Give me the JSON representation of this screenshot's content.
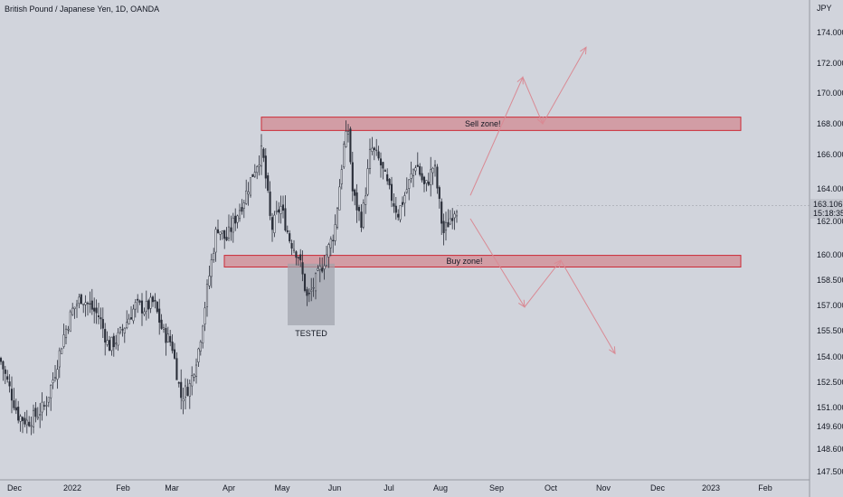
{
  "chart_data": {
    "type": "candlestick",
    "title": "British Pound / Japanese Yen, 1D, OANDA",
    "currency": "JPY",
    "current_price": "163.106",
    "countdown": "15:18:35",
    "y_ticks": [
      "174.000",
      "172.000",
      "170.000",
      "168.000",
      "166.000",
      "164.000",
      "162.000",
      "160.000",
      "158.500",
      "157.000",
      "155.500",
      "154.000",
      "152.500",
      "151.000",
      "149.600",
      "148.600",
      "147.500"
    ],
    "x_ticks": [
      "Dec",
      "2022",
      "Feb",
      "Mar",
      "Apr",
      "May",
      "Jun",
      "Jul",
      "Aug",
      "Sep",
      "Oct",
      "Nov",
      "Dec",
      "2023",
      "Feb"
    ],
    "price_series_approx": [
      [
        0,
        153.9
      ],
      [
        10,
        152.2
      ],
      [
        20,
        150.5
      ],
      [
        30,
        150.1
      ],
      [
        40,
        150.5
      ],
      [
        50,
        151.1
      ],
      [
        60,
        152.9
      ],
      [
        70,
        155.2
      ],
      [
        80,
        156.8
      ],
      [
        90,
        157.6
      ],
      [
        100,
        157.0
      ],
      [
        110,
        156.4
      ],
      [
        120,
        154.6
      ],
      [
        130,
        155.1
      ],
      [
        140,
        156.1
      ],
      [
        150,
        157.1
      ],
      [
        160,
        156.9
      ],
      [
        170,
        157.3
      ],
      [
        180,
        155.5
      ],
      [
        190,
        154.8
      ],
      [
        200,
        151.6
      ],
      [
        210,
        152.3
      ],
      [
        220,
        154.6
      ],
      [
        230,
        158.4
      ],
      [
        240,
        161.9
      ],
      [
        250,
        161.0
      ],
      [
        260,
        162.3
      ],
      [
        270,
        163.5
      ],
      [
        280,
        165.1
      ],
      [
        290,
        166.4
      ],
      [
        295,
        164.2
      ],
      [
        300,
        161.6
      ],
      [
        310,
        163.1
      ],
      [
        320,
        161.1
      ],
      [
        330,
        160.1
      ],
      [
        340,
        157.4
      ],
      [
        350,
        158.7
      ],
      [
        360,
        160.0
      ],
      [
        370,
        161.6
      ],
      [
        380,
        166.6
      ],
      [
        385,
        167.6
      ],
      [
        390,
        163.8
      ],
      [
        400,
        162.1
      ],
      [
        410,
        166.6
      ],
      [
        420,
        165.7
      ],
      [
        430,
        164.0
      ],
      [
        440,
        162.6
      ],
      [
        450,
        164.1
      ],
      [
        460,
        165.7
      ],
      [
        470,
        164.1
      ],
      [
        480,
        165.6
      ],
      [
        490,
        161.4
      ],
      [
        500,
        162.6
      ],
      [
        505,
        163.1
      ]
    ],
    "zones": [
      {
        "label": "Sell zone!",
        "y_from": 167.6,
        "y_to": 168.4
      },
      {
        "label": "Buy zone!",
        "y_from": 159.4,
        "y_to": 160.1
      }
    ],
    "tested": {
      "label": "TESTED",
      "y_from": 155.9,
      "y_to": 159.6,
      "date_range": [
        "May",
        "Jun"
      ]
    },
    "scenarios": [
      {
        "name": "bullish",
        "path": [
          [
            520,
            163.7
          ],
          [
            578,
            170.8
          ],
          [
            600,
            168.0
          ],
          [
            648,
            172.6
          ]
        ]
      },
      {
        "name": "bearish",
        "path": [
          [
            520,
            162.3
          ],
          [
            580,
            157.0
          ],
          [
            620,
            159.8
          ],
          [
            680,
            154.2
          ]
        ]
      }
    ],
    "accent_colors": {
      "up": "#2a2e39",
      "zone_fill": "#d46f79",
      "zone_border": "#cc2a36",
      "arrow": "#d98a94",
      "tested_fill": "#a0a3ab"
    }
  }
}
